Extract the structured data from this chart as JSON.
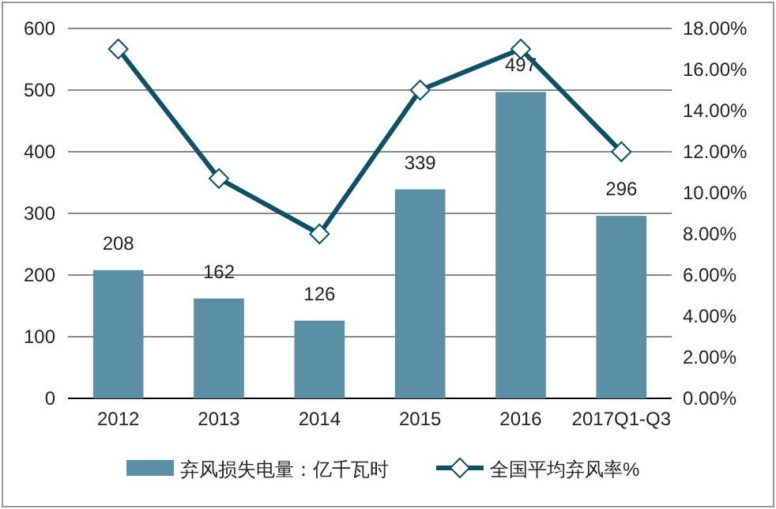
{
  "chart_data": {
    "type": "bar",
    "categories": [
      "2012",
      "2013",
      "2014",
      "2015",
      "2016",
      "2017Q1-Q3"
    ],
    "series": [
      {
        "name": "弃风损失电量：亿千瓦时",
        "color": "#5b8fa6",
        "values": [
          208,
          162,
          126,
          339,
          497,
          296
        ],
        "value_labels": [
          "208",
          "162",
          "126",
          "339",
          "497",
          "296"
        ]
      },
      {
        "name": "全国平均弃风率%",
        "type": "line",
        "axis": "y2",
        "color": "#0e5166",
        "marker": "diamond",
        "values": [
          17,
          10.7,
          8,
          15,
          17,
          12
        ]
      }
    ],
    "ylim": [
      0,
      600
    ],
    "yticks": [
      0,
      100,
      200,
      300,
      400,
      500,
      600
    ],
    "y2lim": [
      0,
      18
    ],
    "y2ticks": [
      {
        "value": 0,
        "label": "0.00%"
      },
      {
        "value": 2,
        "label": "2.00%"
      },
      {
        "value": 4,
        "label": "4.00%"
      },
      {
        "value": 6,
        "label": "6.00%"
      },
      {
        "value": 8,
        "label": "8.00%"
      },
      {
        "value": 10,
        "label": "10.00%"
      },
      {
        "value": 12,
        "label": "12.00%"
      },
      {
        "value": 14,
        "label": "14.00%"
      },
      {
        "value": 16,
        "label": "16.00%"
      },
      {
        "value": 18,
        "label": "18.00%"
      }
    ],
    "grid": "y",
    "legend": "bottom"
  }
}
